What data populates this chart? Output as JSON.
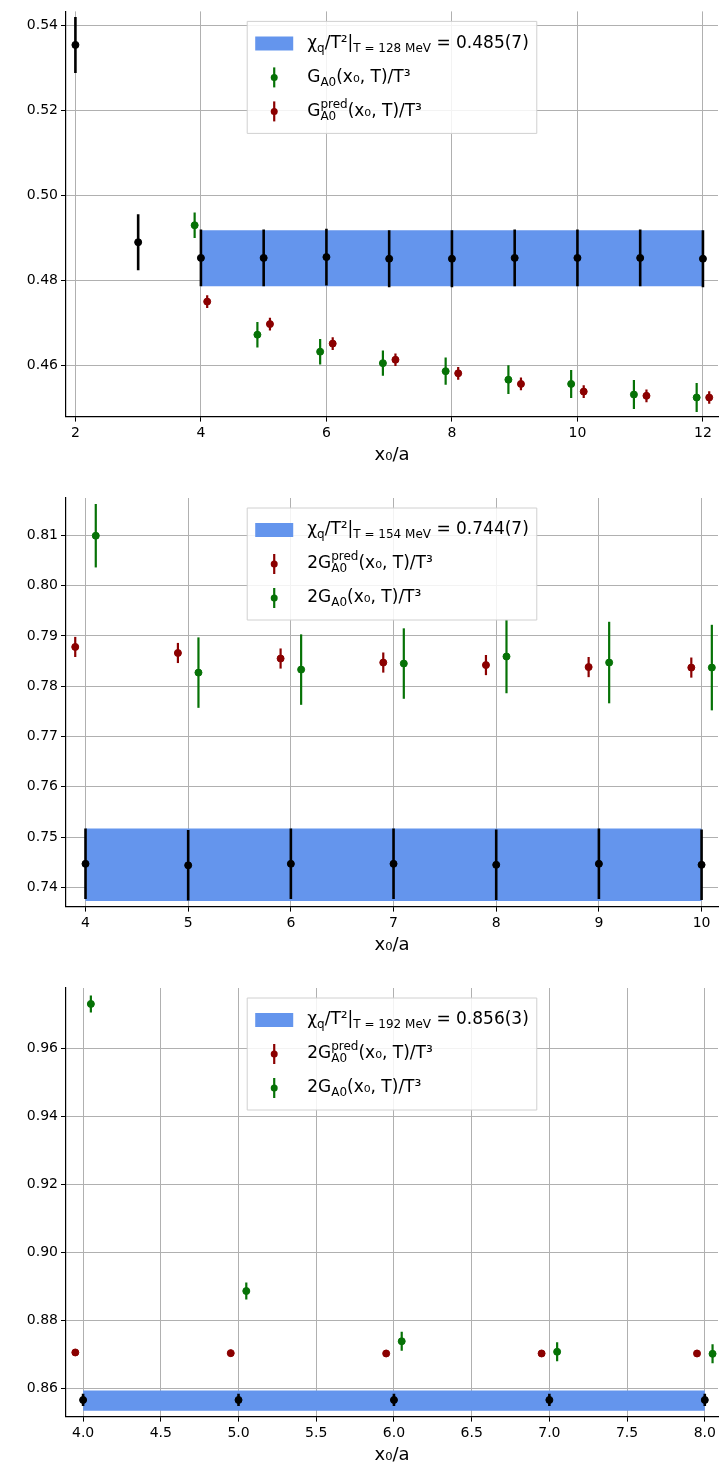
{
  "chart_data": [
    {
      "type": "scatter",
      "xlabel": "x₀/a",
      "xlim": [
        1.85,
        12.24
      ],
      "xticks": [
        2,
        4,
        6,
        8,
        10,
        12
      ],
      "ylim": [
        0.4479,
        0.5434
      ],
      "yticks": [
        0.46,
        0.48,
        {
          "value": 0.5,
          "label": "0.50"
        },
        0.52,
        0.54
      ],
      "grid": true,
      "legend": "top",
      "marker": "circle",
      "series": [
        {
          "type": "area",
          "name": "χ$_{q}$/T²|$_{T = 128 MeV}$ = 0.485(7)",
          "color": "#6495ed",
          "x": [
            4,
            12
          ],
          "values": [
            null,
            null
          ],
          "lower": [
            0.4786,
            0.4786
          ],
          "upper": [
            0.4918,
            0.4918
          ]
        },
        {
          "name": "G$_{A0}$(x₀, T)/T³",
          "color": "#067206",
          "x": [
            3.9,
            4.9,
            5.9,
            6.9,
            7.9,
            8.9,
            9.9,
            10.9,
            11.9
          ],
          "values": [
            0.493,
            0.4672,
            0.4632,
            0.4605,
            0.4586,
            0.4566,
            0.4556,
            0.4531,
            0.4524
          ],
          "errors": [
            0.003,
            0.003,
            0.003,
            0.003,
            0.0032,
            0.0034,
            0.0033,
            0.0034,
            0.0034
          ]
        },
        {
          "name": "G$^{pred}$$_{A0}$(x₀, T)/T³",
          "color": "#8b0000",
          "x": [
            4.1,
            5.1,
            6.1,
            7.1,
            8.1,
            9.1,
            10.1,
            11.1,
            12.1
          ],
          "values": [
            0.475,
            0.4697,
            0.4651,
            0.4613,
            0.4581,
            0.4556,
            0.4538,
            0.4528,
            0.4524
          ],
          "errors": [
            0.0015,
            0.0015,
            0.0015,
            0.0015,
            0.0015,
            0.0015,
            0.0015,
            0.0015,
            0.0015
          ]
        },
        {
          "color": "#000000",
          "x": [
            2,
            3,
            4,
            5,
            6,
            7,
            8,
            9,
            10,
            11,
            12
          ],
          "values": [
            0.5355,
            0.489,
            0.4853,
            0.4853,
            0.4855,
            0.4851,
            0.4851,
            0.4853,
            0.4853,
            0.4853,
            0.4851
          ],
          "errors": [
            0.0066,
            0.0066,
            0.0067,
            0.0067,
            0.0067,
            0.0067,
            0.0067,
            0.0067,
            0.0067,
            0.0067,
            0.0067
          ]
        }
      ]
    },
    {
      "type": "scatter",
      "xlabel": "x₀/a",
      "xlim": [
        3.81,
        10.16
      ],
      "xticks": [
        4,
        5,
        6,
        7,
        8,
        9,
        10
      ],
      "ylim": [
        0.7362,
        0.8174
      ],
      "yticks": [
        0.74,
        0.75,
        0.76,
        0.77,
        0.78,
        0.79,
        {
          "value": 0.8,
          "label": "0.80"
        },
        0.81
      ],
      "grid": true,
      "legend": "top",
      "marker": "circle",
      "series": [
        {
          "type": "area",
          "name": "χ$_{q}$/T²|$_{T = 154 MeV}$ = 0.744(7)",
          "color": "#6495ed",
          "x": [
            4,
            10
          ],
          "values": [
            null,
            null
          ],
          "lower": [
            0.7373,
            0.7373
          ],
          "upper": [
            0.7517,
            0.7517
          ]
        },
        {
          "name": "2G$^{pred}$$_{A0}$(x₀, T)/T³",
          "color": "#8b0000",
          "x": [
            3.9,
            4.9,
            5.9,
            6.9,
            7.9,
            8.9,
            9.9
          ],
          "values": [
            0.7878,
            0.7866,
            0.7855,
            0.7847,
            0.7842,
            0.7838,
            0.7837
          ],
          "errors": [
            0.002,
            0.002,
            0.002,
            0.002,
            0.002,
            0.002,
            0.002
          ]
        },
        {
          "name": "2G$_{A0}$(x₀, T)/T³",
          "color": "#067206",
          "x": [
            4.1,
            5.1,
            6.1,
            7.1,
            8.1,
            9.1,
            10.1
          ],
          "values": [
            0.8099,
            0.7827,
            0.7833,
            0.7845,
            0.7859,
            0.7847,
            0.7837
          ],
          "errors": [
            0.0063,
            0.007,
            0.007,
            0.007,
            0.0073,
            0.0081,
            0.0085
          ]
        },
        {
          "color": "#000000",
          "x": [
            4,
            5,
            6,
            7,
            8,
            9,
            10
          ],
          "values": [
            0.7447,
            0.7444,
            0.7447,
            0.7447,
            0.7445,
            0.7447,
            0.7445
          ],
          "errors": [
            0.007,
            0.007,
            0.007,
            0.007,
            0.007,
            0.007,
            0.007
          ]
        }
      ]
    },
    {
      "type": "scatter",
      "xlabel": "x₀/a",
      "xlim": [
        3.89,
        8.085
      ],
      "xticks": [
        {
          "value": 4,
          "label": "4.0"
        },
        4.5,
        {
          "value": 5,
          "label": "5.0"
        },
        5.5,
        {
          "value": 6,
          "label": "6.0"
        },
        6.5,
        {
          "value": 7,
          "label": "7.0"
        },
        7.5,
        {
          "value": 8,
          "label": "8.0"
        }
      ],
      "ylim": [
        0.8516,
        0.9779
      ],
      "yticks": [
        0.86,
        0.88,
        {
          "value": 0.9,
          "label": "0.90"
        },
        0.92,
        0.94,
        0.96
      ],
      "grid": true,
      "legend": "top",
      "marker": "circle",
      "series": [
        {
          "type": "area",
          "name": "χ$_{q}$/T²|$_{T = 192 MeV}$ = 0.856(3)",
          "color": "#6495ed",
          "x": [
            4,
            8
          ],
          "values": [
            null,
            null
          ],
          "lower": [
            0.8533,
            0.8533
          ],
          "upper": [
            0.8593,
            0.8593
          ]
        },
        {
          "name": "2G$^{pred}$$_{A0}$(x₀, T)/T³",
          "color": "#8b0000",
          "x": [
            3.95,
            4.95,
            5.95,
            6.95,
            7.95
          ],
          "values": [
            0.8705,
            0.8703,
            0.8702,
            0.8702,
            0.8702
          ],
          "errors": [
            0.001,
            0.001,
            0.001,
            0.001,
            0.001
          ]
        },
        {
          "name": "2G$_{A0}$(x₀, T)/T³",
          "color": "#067206",
          "x": [
            4.05,
            5.05,
            6.05,
            7.05,
            8.05
          ],
          "values": [
            0.9732,
            0.8886,
            0.8738,
            0.8707,
            0.8701
          ],
          "errors": [
            0.0025,
            0.0025,
            0.0028,
            0.0028,
            0.0028
          ]
        },
        {
          "color": "#000000",
          "x": [
            4,
            5,
            6,
            7,
            8
          ],
          "values": [
            0.8565,
            0.8565,
            0.8565,
            0.8565,
            0.8565
          ],
          "errors": [
            0.0018,
            0.0018,
            0.0018,
            0.0018,
            0.0018
          ]
        }
      ]
    }
  ]
}
